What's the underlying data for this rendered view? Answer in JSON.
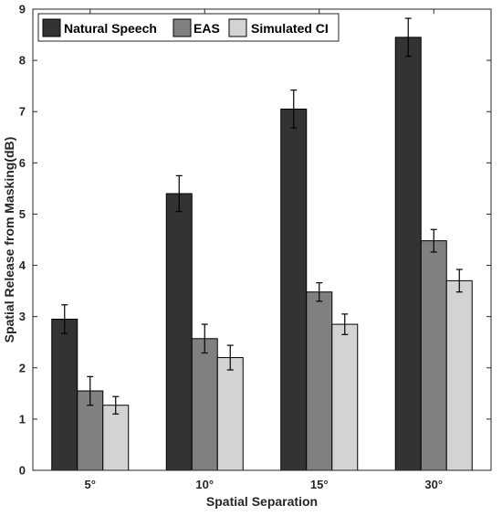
{
  "chart_data": {
    "type": "bar",
    "title": "",
    "xlabel": "Spatial Separation",
    "ylabel": "Spatial Release from Masking(dB)",
    "categories": [
      "5°",
      "10°",
      "15°",
      "30°"
    ],
    "ylim": [
      0,
      9
    ],
    "yticks": [
      0,
      1,
      2,
      3,
      4,
      5,
      6,
      7,
      8,
      9
    ],
    "grid": false,
    "legend_position": "top-left",
    "series": [
      {
        "name": "Natural Speech",
        "color": "#333333",
        "values": [
          2.95,
          5.4,
          7.05,
          8.45
        ],
        "errors": [
          0.28,
          0.35,
          0.37,
          0.37
        ]
      },
      {
        "name": "EAS",
        "color": "#808080",
        "values": [
          1.55,
          2.57,
          3.48,
          4.48
        ],
        "errors": [
          0.28,
          0.28,
          0.18,
          0.22
        ]
      },
      {
        "name": "Simulated CI",
        "color": "#d3d3d3",
        "values": [
          1.27,
          2.2,
          2.85,
          3.7
        ],
        "errors": [
          0.17,
          0.24,
          0.2,
          0.22
        ]
      }
    ]
  }
}
